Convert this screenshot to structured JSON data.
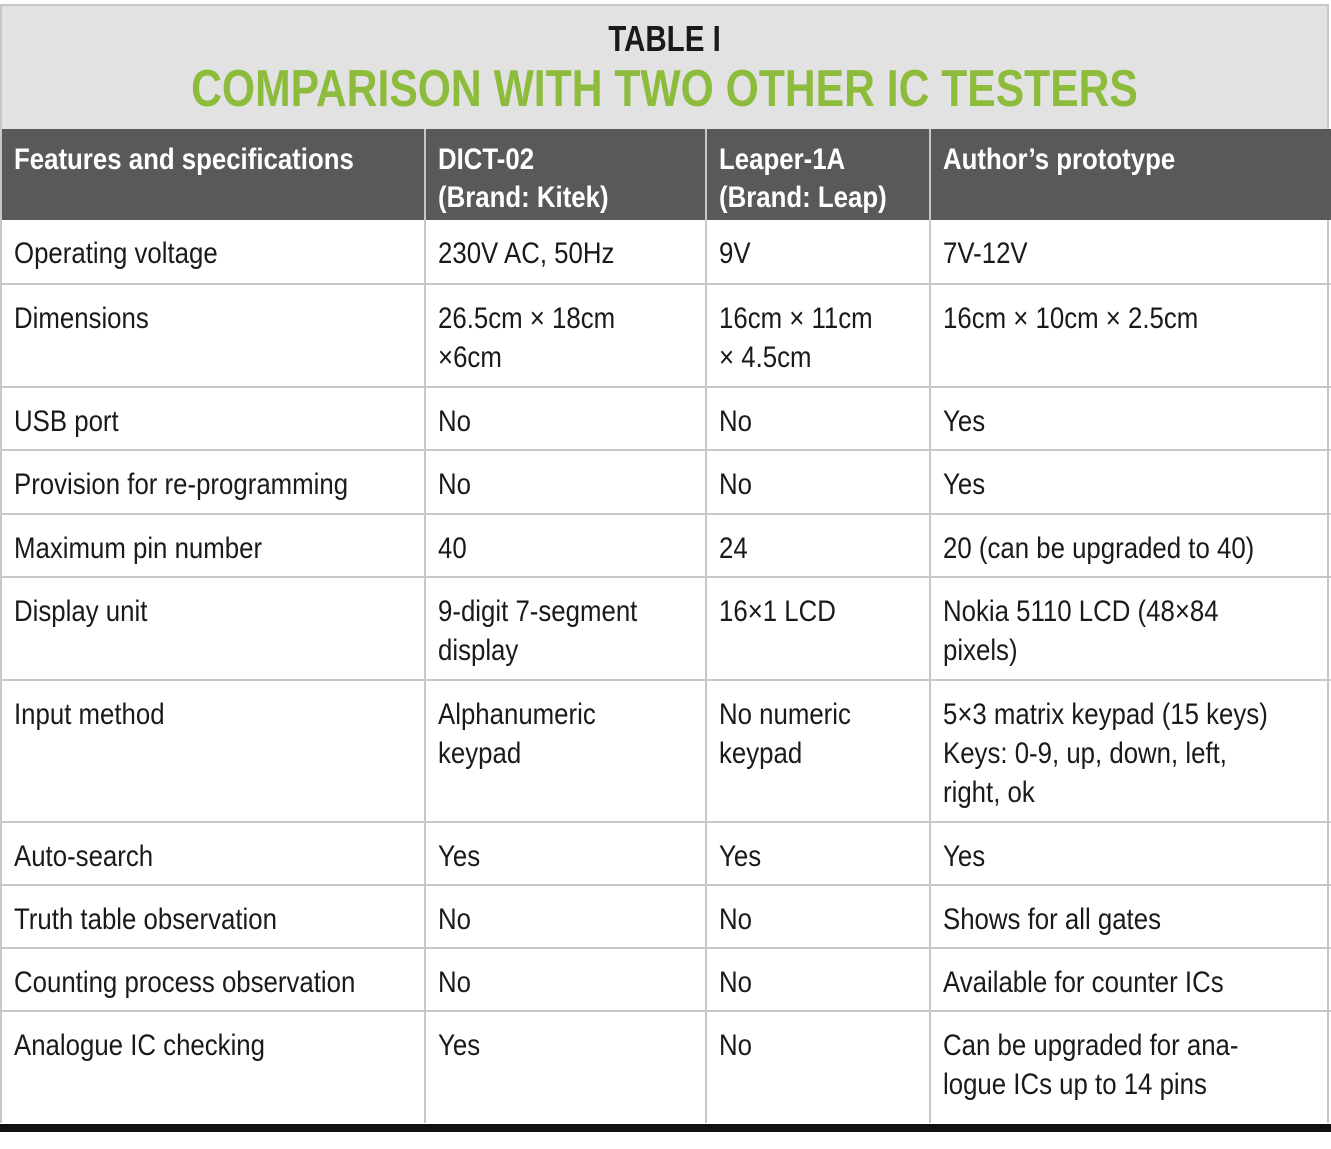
{
  "title": {
    "line1": "TABLE I",
    "line2": "COMPARISON WITH TWO OTHER IC TESTERS"
  },
  "colors": {
    "title_accent": "#8dbb3c",
    "header_bg": "#58595b",
    "title_bg": "#e2e2e2"
  },
  "columns": [
    "Features and specifications",
    "DICT-02\n(Brand: Kitek)",
    "Leaper-1A\n(Brand: Leap)",
    "Author’s prototype"
  ],
  "rows": [
    [
      "Operating voltage",
      "230V AC, 50Hz",
      "9V",
      "7V-12V"
    ],
    [
      "Dimensions",
      "26.5cm × 18cm\n×6cm",
      "16cm × 11cm\n× 4.5cm",
      "16cm × 10cm × 2.5cm"
    ],
    [
      "USB port",
      "No",
      "No",
      "Yes"
    ],
    [
      "Provision for re-programming",
      "No",
      "No",
      "Yes"
    ],
    [
      "Maximum pin number",
      "40",
      "24",
      "20 (can be upgraded to 40)"
    ],
    [
      "Display unit",
      "9-digit 7-segment\ndisplay",
      "16×1 LCD",
      "Nokia 5110 LCD (48×84\npixels)"
    ],
    [
      "Input method",
      "Alphanumeric\nkeypad",
      "No numeric\nkeypad",
      "5×3 matrix keypad (15 keys)\nKeys: 0-9, up, down, left,\nright, ok"
    ],
    [
      "Auto-search",
      "Yes",
      "Yes",
      "Yes"
    ],
    [
      "Truth table observation",
      "No",
      "No",
      "Shows for all gates"
    ],
    [
      "Counting process observation",
      "No",
      "No",
      "Available for counter ICs"
    ],
    [
      "Analogue IC checking",
      "Yes",
      "No",
      "Can be upgraded for ana-\nlogue ICs up to 14 pins"
    ]
  ]
}
